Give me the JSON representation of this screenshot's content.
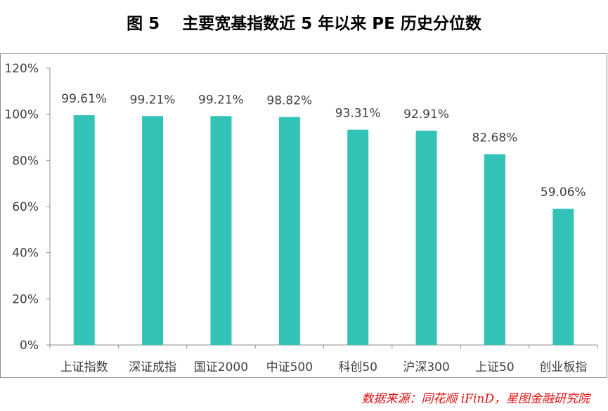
{
  "title": "图 5    主要宽基指数近 5 年以来 PE 历史分位数",
  "source": "数据来源：同花顺 iFinD，星图金融研究院",
  "colors": {
    "bar": "#32c3b6",
    "axis": "#8c8c8c",
    "text": "#404040",
    "source": "#e01010"
  },
  "chart_data": {
    "type": "bar",
    "categories": [
      "上证指数",
      "深证成指",
      "国证2000",
      "中证500",
      "科创50",
      "沪深300",
      "上证50",
      "创业板指"
    ],
    "values": [
      99.61,
      99.21,
      99.21,
      98.82,
      93.31,
      92.91,
      82.68,
      59.06
    ],
    "data_labels": [
      "99.61%",
      "99.21%",
      "99.21%",
      "98.82%",
      "93.31%",
      "92.91%",
      "82.68%",
      "59.06%"
    ],
    "ylim": [
      0,
      120
    ],
    "yticks": [
      0,
      20,
      40,
      60,
      80,
      100,
      120
    ],
    "ytick_labels": [
      "0%",
      "20%",
      "40%",
      "60%",
      "80%",
      "100%",
      "120%"
    ],
    "grid": false,
    "legend": "none"
  }
}
